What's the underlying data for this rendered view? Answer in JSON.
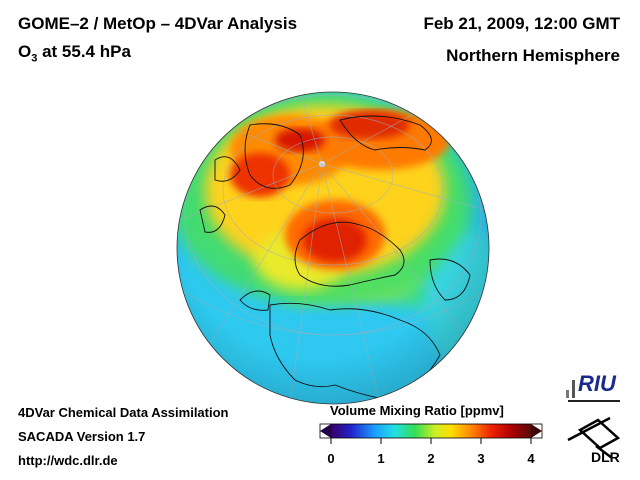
{
  "header": {
    "title": "GOME–2 / MetOp – 4DVar Analysis",
    "subtitle_prefix": "O",
    "subtitle_sub": "3",
    "subtitle_suffix": " at 55.4 hPa",
    "date": "Feb 21, 2009, 12:00 GMT",
    "region": "Northern Hemisphere"
  },
  "footer": {
    "line1": "4DVar Chemical Data Assimilation",
    "line2": "SACADA Version 1.7",
    "line3": "http://wdc.dlr.de"
  },
  "legend": {
    "title": "Volume Mixing Ratio [ppmv]",
    "ticks": [
      "0",
      "1",
      "2",
      "3",
      "4"
    ],
    "range": [
      0,
      4
    ],
    "colors": [
      "#3a0066",
      "#2222cc",
      "#1aa0ff",
      "#22e0e0",
      "#33dd55",
      "#ccee22",
      "#ffdd00",
      "#ff8800",
      "#ee2200",
      "#b00000",
      "#5a0a0a"
    ]
  },
  "logos": {
    "riu": "RIU",
    "dlr": "DLR"
  }
}
